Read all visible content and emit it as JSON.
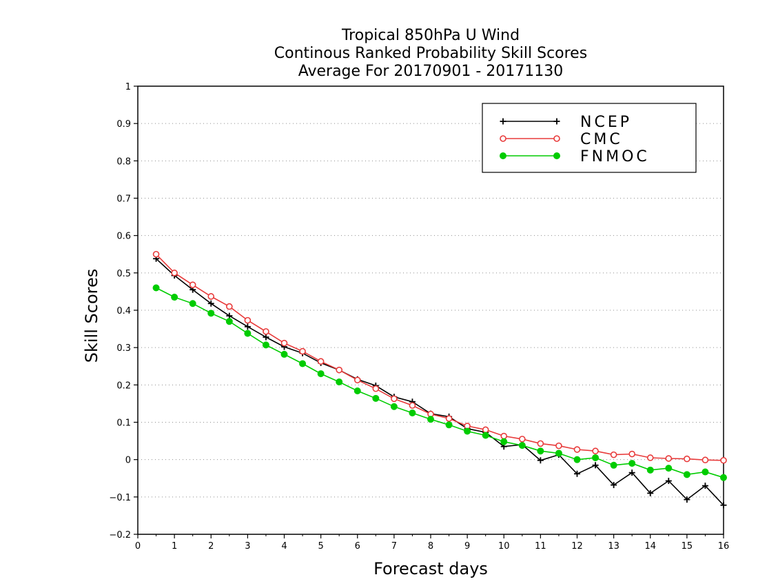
{
  "chart_data": {
    "type": "line",
    "title": [
      "Tropical 850hPa U Wind",
      "Continous Ranked Probability Skill Scores",
      "Average For 20170901 - 20171130"
    ],
    "xlabel": "Forecast days",
    "ylabel": "Skill Scores",
    "xlim": [
      0,
      16
    ],
    "ylim": [
      -0.2,
      1
    ],
    "xticks": [
      "0",
      "1",
      "2",
      "3",
      "4",
      "5",
      "6",
      "7",
      "8",
      "9",
      "10",
      "11",
      "12",
      "13",
      "14",
      "15",
      "16"
    ],
    "yticks": [
      "−0.2",
      "−0.1",
      "0",
      "0.1",
      "0.2",
      "0.3",
      "0.4",
      "0.5",
      "0.6",
      "0.7",
      "0.8",
      "0.9",
      "1"
    ],
    "grid": "horizontal dotted",
    "legend_position": "top-right",
    "x": [
      0.5,
      1,
      1.5,
      2,
      2.5,
      3,
      3.5,
      4,
      4.5,
      5,
      5.5,
      6,
      6.5,
      7,
      7.5,
      8,
      8.5,
      9,
      9.5,
      10,
      10.5,
      11,
      11.5,
      12,
      12.5,
      13,
      13.5,
      14,
      14.5,
      15,
      15.5,
      16
    ],
    "series": [
      {
        "name": "NCEP",
        "color": "#000000",
        "marker": "plus",
        "values": [
          0.538,
          0.493,
          0.455,
          0.418,
          0.385,
          0.356,
          0.328,
          0.302,
          0.285,
          0.259,
          0.24,
          0.215,
          0.198,
          0.168,
          0.155,
          0.123,
          0.115,
          0.083,
          0.073,
          0.035,
          0.04,
          -0.002,
          0.013,
          -0.038,
          -0.015,
          -0.068,
          -0.035,
          -0.09,
          -0.057,
          -0.107,
          -0.07,
          -0.122
        ]
      },
      {
        "name": "CMC",
        "color": "#e83a3a",
        "marker": "open-circle",
        "values": [
          0.55,
          0.5,
          0.468,
          0.437,
          0.41,
          0.373,
          0.343,
          0.312,
          0.29,
          0.263,
          0.24,
          0.213,
          0.19,
          0.163,
          0.145,
          0.122,
          0.11,
          0.09,
          0.08,
          0.063,
          0.055,
          0.043,
          0.037,
          0.027,
          0.023,
          0.013,
          0.015,
          0.005,
          0.003,
          0.002,
          -0.001,
          -0.002
        ]
      },
      {
        "name": "FNMOC",
        "color": "#00cc00",
        "marker": "filled-circle",
        "values": [
          0.46,
          0.435,
          0.418,
          0.392,
          0.37,
          0.338,
          0.307,
          0.282,
          0.257,
          0.23,
          0.208,
          0.184,
          0.164,
          0.142,
          0.125,
          0.108,
          0.093,
          0.076,
          0.065,
          0.048,
          0.038,
          0.023,
          0.017,
          0.0,
          0.005,
          -0.015,
          -0.01,
          -0.028,
          -0.023,
          -0.04,
          -0.033,
          -0.048
        ]
      }
    ]
  }
}
